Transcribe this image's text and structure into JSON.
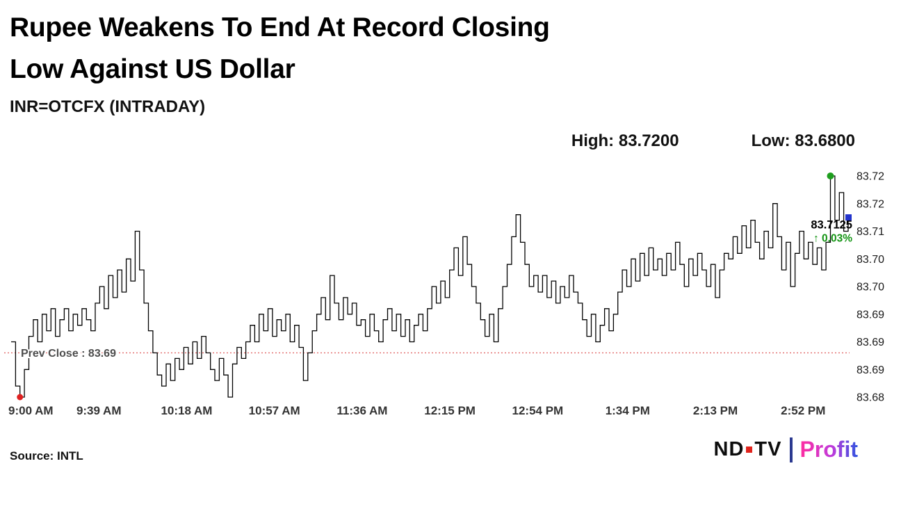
{
  "header": {
    "title_line1": "Rupee Weakens To End At Record Closing",
    "title_line2": "Low Against US Dollar",
    "subtitle": "INR=OTCFX (INTRADAY)",
    "high_label": "High: 83.7200",
    "low_label": "Low: 83.6800"
  },
  "footer": {
    "source": "Source: INTL",
    "logo_nd": "ND",
    "logo_tv": "TV",
    "logo_profit": "Profit"
  },
  "chart_data": {
    "type": "line",
    "title": "Rupee Weakens To End At Record Closing Low Against US Dollar",
    "subtitle": "INR=OTCFX (INTRADAY)",
    "xlabel": "",
    "ylabel": "",
    "high": 83.72,
    "low": 83.68,
    "last": 83.7125,
    "last_label": "83.7125",
    "change_label": "↑ 0.03%",
    "prev_close": {
      "label": "Prev Close : 83.69",
      "value": 83.688
    },
    "ylim": [
      83.678,
      83.722
    ],
    "grid": false,
    "legend": "none",
    "line_color": "#000000",
    "prev_close_color": "#e05c5c",
    "prev_close_text_color": "#4d4d4d",
    "high_marker_color": "#1e9e1e",
    "low_marker_color": "#e02020",
    "last_marker_color": "#2233cc",
    "change_color": "#149414",
    "y_ticks": [
      {
        "label": "83.72",
        "value": 83.72
      },
      {
        "label": "83.72",
        "value": 83.715
      },
      {
        "label": "83.71",
        "value": 83.71
      },
      {
        "label": "83.70",
        "value": 83.705
      },
      {
        "label": "83.70",
        "value": 83.7
      },
      {
        "label": "83.69",
        "value": 83.695
      },
      {
        "label": "83.69",
        "value": 83.69
      },
      {
        "label": "83.69",
        "value": 83.685
      },
      {
        "label": "83.68",
        "value": 83.68
      }
    ],
    "x_labels": [
      {
        "label": "9:00 AM",
        "minute": 0
      },
      {
        "label": "9:39 AM",
        "minute": 39
      },
      {
        "label": "10:18 AM",
        "minute": 78
      },
      {
        "label": "10:57 AM",
        "minute": 117
      },
      {
        "label": "11:36 AM",
        "minute": 156
      },
      {
        "label": "12:15 PM",
        "minute": 195
      },
      {
        "label": "12:54 PM",
        "minute": 234
      },
      {
        "label": "1:34 PM",
        "minute": 274
      },
      {
        "label": "2:13 PM",
        "minute": 313
      },
      {
        "label": "2:52 PM",
        "minute": 352
      }
    ],
    "total_minutes": 372,
    "values": [
      83.69,
      83.682,
      83.68,
      83.685,
      83.691,
      83.694,
      83.69,
      83.695,
      83.692,
      83.696,
      83.691,
      83.694,
      83.696,
      83.692,
      83.695,
      83.693,
      83.696,
      83.694,
      83.692,
      83.697,
      83.7,
      83.696,
      83.702,
      83.698,
      83.703,
      83.699,
      83.705,
      83.701,
      83.71,
      83.703,
      83.697,
      83.692,
      83.688,
      83.684,
      83.682,
      83.686,
      83.683,
      83.687,
      83.685,
      83.689,
      83.686,
      83.69,
      83.687,
      83.691,
      83.688,
      83.685,
      83.683,
      83.687,
      83.684,
      83.68,
      83.686,
      83.689,
      83.687,
      83.69,
      83.693,
      83.69,
      83.695,
      83.692,
      83.696,
      83.691,
      83.694,
      83.692,
      83.695,
      83.69,
      83.693,
      83.689,
      83.683,
      83.688,
      83.692,
      83.695,
      83.698,
      83.694,
      83.702,
      83.697,
      83.694,
      83.698,
      83.695,
      83.697,
      83.693,
      83.694,
      83.691,
      83.695,
      83.692,
      83.69,
      83.694,
      83.696,
      83.692,
      83.695,
      83.691,
      83.694,
      83.69,
      83.693,
      83.695,
      83.692,
      83.696,
      83.7,
      83.697,
      83.701,
      83.698,
      83.703,
      83.707,
      83.702,
      83.709,
      83.704,
      83.7,
      83.697,
      83.694,
      83.691,
      83.695,
      83.69,
      83.696,
      83.7,
      83.704,
      83.709,
      83.713,
      83.708,
      83.704,
      83.7,
      83.702,
      83.699,
      83.702,
      83.698,
      83.701,
      83.697,
      83.7,
      83.698,
      83.702,
      83.699,
      83.697,
      83.694,
      83.691,
      83.695,
      83.69,
      83.693,
      83.696,
      83.692,
      83.695,
      83.699,
      83.703,
      83.7,
      83.705,
      83.701,
      83.706,
      83.702,
      83.707,
      83.703,
      83.705,
      83.702,
      83.706,
      83.703,
      83.708,
      83.704,
      83.7,
      83.705,
      83.702,
      83.706,
      83.703,
      83.7,
      83.704,
      83.698,
      83.703,
      83.706,
      83.705,
      83.709,
      83.706,
      83.711,
      83.707,
      83.712,
      83.708,
      83.705,
      83.71,
      83.707,
      83.715,
      83.709,
      83.703,
      83.708,
      83.7,
      83.706,
      83.71,
      83.705,
      83.708,
      83.704,
      83.707,
      83.703,
      83.708,
      83.72,
      83.712,
      83.717,
      83.71,
      83.7125
    ]
  }
}
